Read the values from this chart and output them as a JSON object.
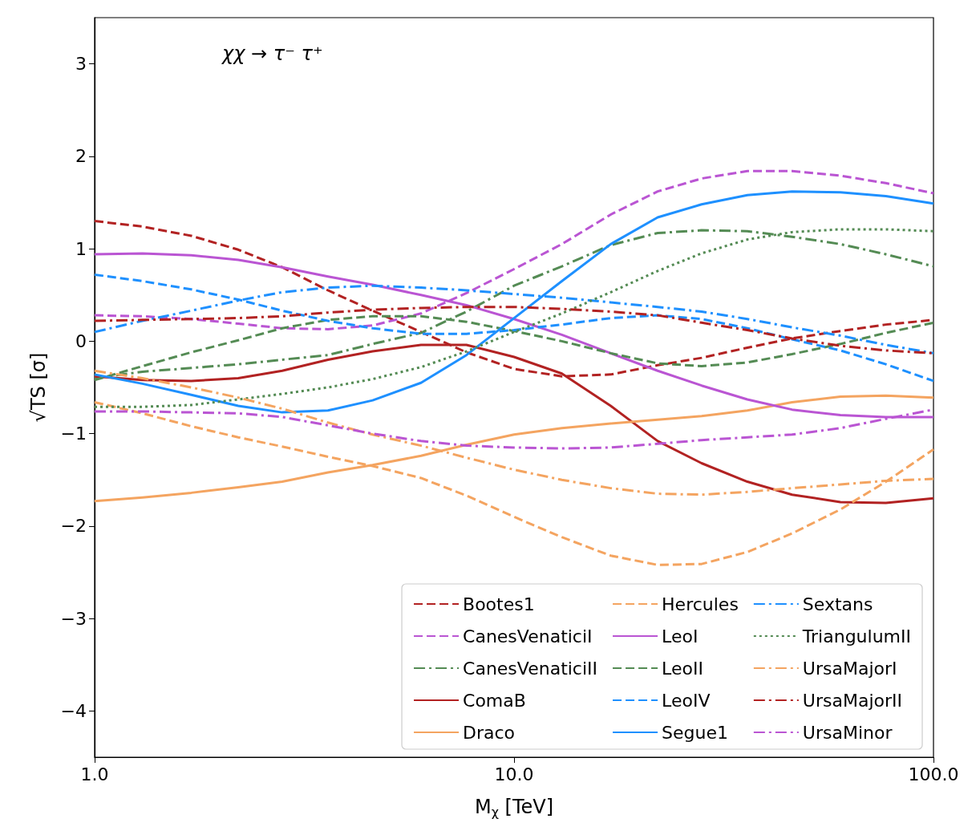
{
  "chart_data": {
    "type": "line",
    "title": "χχ → τ⁻ τ⁺",
    "xlabel": "M$_{χ}$ [TeV]",
    "ylabel": "√TS [σ]",
    "x": [
      1,
      1.3,
      1.7,
      2.2,
      2.8,
      3.6,
      4.6,
      6,
      7.7,
      10,
      13,
      17,
      22,
      28,
      36,
      46,
      60,
      77,
      100
    ],
    "log": "x",
    "xlim": [
      1,
      100
    ],
    "xticks": [
      {
        "value": 1,
        "label": "1.0"
      },
      {
        "value": 10,
        "label": "10.0"
      },
      {
        "value": 100,
        "label": "100.0"
      }
    ],
    "ylim": [
      -4.5,
      3.5
    ],
    "yticks": [
      -4,
      -3,
      -2,
      -1,
      0,
      1,
      2,
      3
    ],
    "grid": false,
    "legend": "bottom right",
    "marker": "none",
    "series": [
      {
        "name": "Bootes1",
        "color": "#b22222",
        "line_style": "dashed",
        "values": [
          1.3,
          1.24,
          1.14,
          0.99,
          0.8,
          0.55,
          0.33,
          0.1,
          -0.12,
          -0.3,
          -0.38,
          -0.36,
          -0.26,
          -0.18,
          -0.07,
          0.03,
          0.11,
          0.18,
          0.23
        ]
      },
      {
        "name": "CanesVenaticiI",
        "color": "#ba55d3",
        "line_style": "dashed",
        "values": [
          0.28,
          0.27,
          0.24,
          0.19,
          0.14,
          0.13,
          0.17,
          0.3,
          0.52,
          0.78,
          1.05,
          1.37,
          1.62,
          1.76,
          1.84,
          1.84,
          1.79,
          1.71,
          1.6
        ]
      },
      {
        "name": "CanesVenaticiII",
        "color": "#548b54",
        "line_style": "dashdot",
        "values": [
          -0.4,
          -0.33,
          -0.29,
          -0.25,
          -0.2,
          -0.15,
          -0.03,
          0.09,
          0.32,
          0.6,
          0.81,
          1.04,
          1.17,
          1.2,
          1.19,
          1.13,
          1.05,
          0.94,
          0.81
        ]
      },
      {
        "name": "ComaB",
        "color": "#b22222",
        "line_style": "solid",
        "values": [
          -0.38,
          -0.42,
          -0.43,
          -0.4,
          -0.32,
          -0.2,
          -0.11,
          -0.04,
          -0.04,
          -0.17,
          -0.35,
          -0.7,
          -1.08,
          -1.32,
          -1.52,
          -1.66,
          -1.74,
          -1.75,
          -1.7
        ]
      },
      {
        "name": "Draco",
        "color": "#f4a460",
        "line_style": "solid",
        "values": [
          -1.73,
          -1.69,
          -1.64,
          -1.58,
          -1.52,
          -1.42,
          -1.34,
          -1.24,
          -1.12,
          -1.01,
          -0.94,
          -0.89,
          -0.85,
          -0.81,
          -0.75,
          -0.66,
          -0.6,
          -0.59,
          -0.61
        ]
      },
      {
        "name": "Hercules",
        "color": "#f4a460",
        "line_style": "dashed",
        "values": [
          -0.66,
          -0.78,
          -0.92,
          -1.04,
          -1.14,
          -1.25,
          -1.35,
          -1.48,
          -1.67,
          -1.9,
          -2.12,
          -2.32,
          -2.42,
          -2.41,
          -2.28,
          -2.08,
          -1.82,
          -1.52,
          -1.17
        ]
      },
      {
        "name": "LeoI",
        "color": "#ba55d3",
        "line_style": "solid",
        "values": [
          0.94,
          0.95,
          0.93,
          0.88,
          0.8,
          0.7,
          0.61,
          0.5,
          0.39,
          0.24,
          0.07,
          -0.13,
          -0.32,
          -0.48,
          -0.63,
          -0.74,
          -0.8,
          -0.82,
          -0.82
        ]
      },
      {
        "name": "LeoII",
        "color": "#548b54",
        "line_style": "dashed",
        "values": [
          -0.42,
          -0.27,
          -0.12,
          0.01,
          0.14,
          0.23,
          0.27,
          0.27,
          0.21,
          0.11,
          0.0,
          -0.13,
          -0.24,
          -0.27,
          -0.23,
          -0.14,
          -0.03,
          0.09,
          0.2
        ]
      },
      {
        "name": "LeoIV",
        "color": "#1e90ff",
        "line_style": "dashed",
        "values": [
          0.72,
          0.65,
          0.56,
          0.45,
          0.33,
          0.22,
          0.14,
          0.08,
          0.08,
          0.12,
          0.18,
          0.25,
          0.28,
          0.24,
          0.14,
          0.02,
          -0.1,
          -0.25,
          -0.43
        ]
      },
      {
        "name": "Segue1",
        "color": "#1e90ff",
        "line_style": "solid",
        "values": [
          -0.36,
          -0.46,
          -0.58,
          -0.7,
          -0.77,
          -0.75,
          -0.64,
          -0.45,
          -0.15,
          0.25,
          0.65,
          1.05,
          1.34,
          1.48,
          1.58,
          1.62,
          1.61,
          1.57,
          1.49
        ]
      },
      {
        "name": "Sextans",
        "color": "#1e90ff",
        "line_style": "dashdot",
        "values": [
          0.1,
          0.22,
          0.33,
          0.44,
          0.53,
          0.58,
          0.6,
          0.58,
          0.55,
          0.51,
          0.47,
          0.42,
          0.37,
          0.32,
          0.24,
          0.15,
          0.06,
          -0.04,
          -0.13
        ]
      },
      {
        "name": "TriangulumII",
        "color": "#548b54",
        "line_style": "dotted",
        "values": [
          -0.71,
          -0.71,
          -0.69,
          -0.63,
          -0.57,
          -0.5,
          -0.41,
          -0.28,
          -0.11,
          0.1,
          0.3,
          0.53,
          0.76,
          0.95,
          1.1,
          1.18,
          1.21,
          1.21,
          1.19
        ]
      },
      {
        "name": "UrsaMajorI",
        "color": "#f4a460",
        "line_style": "dashdot",
        "values": [
          -0.32,
          -0.4,
          -0.5,
          -0.61,
          -0.73,
          -0.88,
          -1.01,
          -1.13,
          -1.26,
          -1.39,
          -1.5,
          -1.59,
          -1.65,
          -1.66,
          -1.63,
          -1.59,
          -1.55,
          -1.51,
          -1.49
        ]
      },
      {
        "name": "UrsaMajorII",
        "color": "#b22222",
        "line_style": "dashdot",
        "values": [
          0.22,
          0.23,
          0.24,
          0.25,
          0.27,
          0.31,
          0.34,
          0.36,
          0.37,
          0.37,
          0.35,
          0.32,
          0.28,
          0.2,
          0.12,
          0.03,
          -0.05,
          -0.1,
          -0.13
        ]
      },
      {
        "name": "UrsaMinor",
        "color": "#ba55d3",
        "line_style": "dashdot",
        "values": [
          -0.76,
          -0.76,
          -0.77,
          -0.78,
          -0.82,
          -0.91,
          -1.0,
          -1.08,
          -1.13,
          -1.15,
          -1.16,
          -1.15,
          -1.11,
          -1.07,
          -1.04,
          -1.01,
          -0.94,
          -0.84,
          -0.74
        ]
      }
    ]
  }
}
